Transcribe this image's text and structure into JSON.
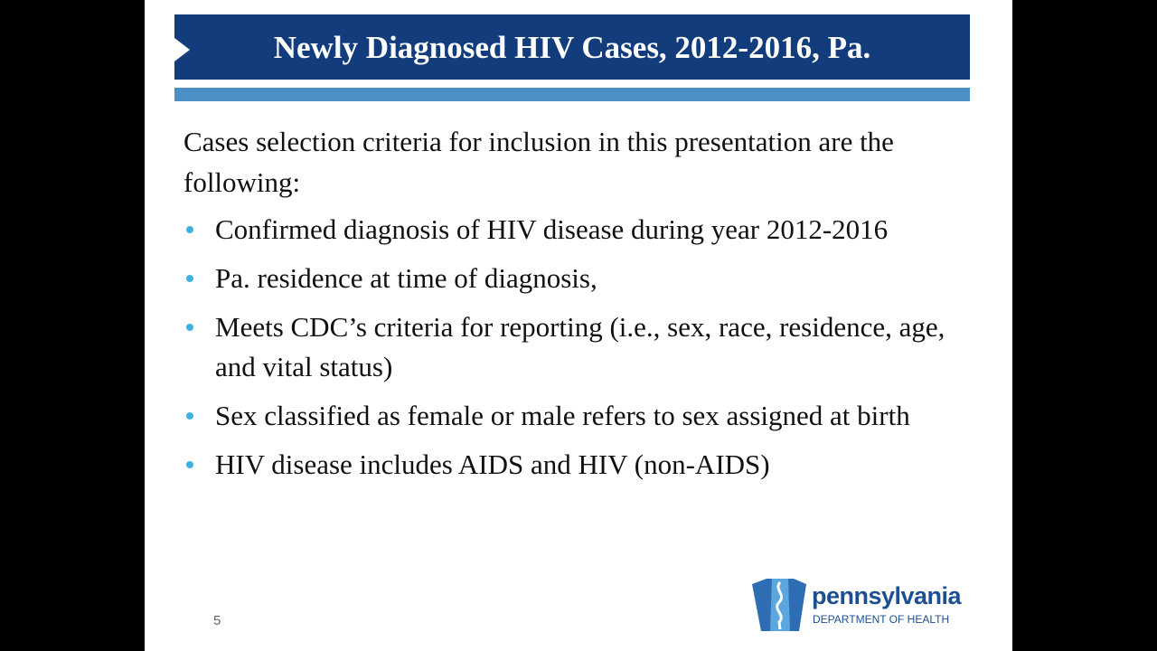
{
  "header": {
    "title": "Newly Diagnosed HIV Cases, 2012-2016, Pa."
  },
  "intro": "Cases selection criteria for inclusion in this presentation are the following:",
  "bullets": [
    "Confirmed diagnosis of HIV disease during year 2012-2016",
    "Pa. residence at time of diagnosis,",
    "Meets CDC’s criteria for reporting (i.e., sex, race, residence, age, and vital status)",
    "Sex classified as female or male refers to sex assigned at birth",
    "HIV disease includes AIDS and HIV (non-AIDS)"
  ],
  "page_number": "5",
  "logo": {
    "name": "pennsylvania",
    "subtitle": "DEPARTMENT OF HEALTH"
  }
}
